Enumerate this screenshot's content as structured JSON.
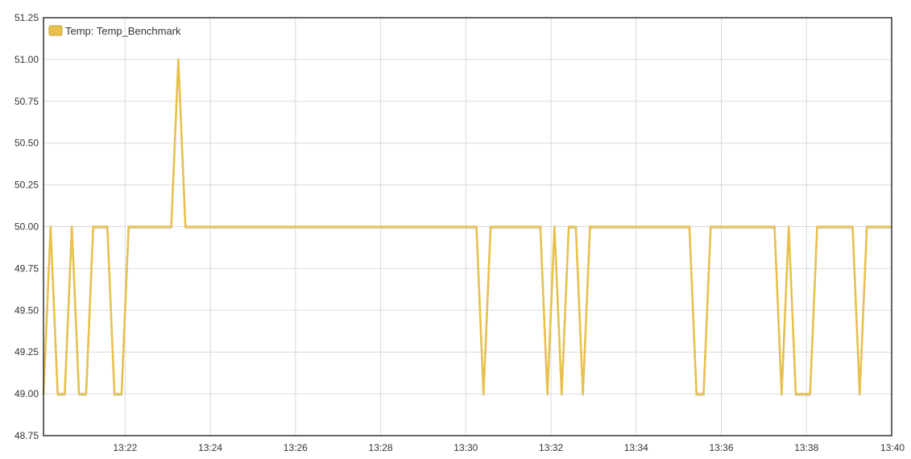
{
  "chart_data": {
    "type": "line",
    "title": "",
    "xlabel": "",
    "ylabel": "",
    "x_tick_labels": [
      "13:22",
      "13:24",
      "13:26",
      "13:28",
      "13:30",
      "13:32",
      "13:34",
      "13:36",
      "13:38",
      "13:40"
    ],
    "y_tick_labels": [
      "48.75",
      "49.00",
      "49.25",
      "49.50",
      "49.75",
      "50.00",
      "50.25",
      "50.50",
      "50.75",
      "51.00",
      "51.25"
    ],
    "xlim": [
      "13:20:05",
      "13:40:00"
    ],
    "ylim": [
      48.75,
      51.25
    ],
    "grid": true,
    "legend_position": "top-left",
    "series": [
      {
        "name": "Temp: Temp_Benchmark",
        "color": "#e8c04a",
        "x": [
          "13:20:05",
          "13:20:15",
          "13:20:25",
          "13:20:35",
          "13:20:45",
          "13:20:55",
          "13:21:05",
          "13:21:15",
          "13:21:25",
          "13:21:35",
          "13:21:45",
          "13:21:55",
          "13:22:05",
          "13:22:15",
          "13:22:25",
          "13:22:35",
          "13:22:45",
          "13:22:55",
          "13:23:05",
          "13:23:15",
          "13:23:25",
          "13:23:35",
          "13:30:15",
          "13:30:25",
          "13:30:35",
          "13:31:45",
          "13:31:55",
          "13:32:05",
          "13:32:15",
          "13:32:25",
          "13:32:35",
          "13:32:45",
          "13:32:55",
          "13:33:05",
          "13:35:15",
          "13:35:25",
          "13:35:35",
          "13:35:45",
          "13:37:15",
          "13:37:25",
          "13:37:35",
          "13:37:45",
          "13:37:55",
          "13:38:05",
          "13:38:15",
          "13:39:05",
          "13:39:15",
          "13:39:25",
          "13:40:00"
        ],
        "values": [
          49.0,
          50.0,
          49.0,
          49.0,
          50.0,
          49.0,
          49.0,
          50.0,
          50.0,
          50.0,
          49.0,
          49.0,
          50.0,
          50.0,
          50.0,
          50.0,
          50.0,
          50.0,
          50.0,
          51.0,
          50.0,
          50.0,
          50.0,
          49.0,
          50.0,
          50.0,
          49.0,
          50.0,
          49.0,
          50.0,
          50.0,
          49.0,
          50.0,
          50.0,
          50.0,
          49.0,
          49.0,
          50.0,
          50.0,
          49.0,
          50.0,
          49.0,
          49.0,
          49.0,
          50.0,
          50.0,
          49.0,
          50.0,
          50.0
        ]
      }
    ]
  }
}
